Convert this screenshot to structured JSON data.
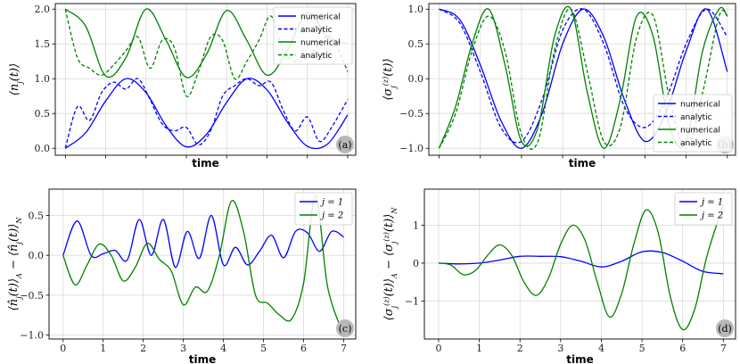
{
  "chart_data": [
    {
      "panel": "(a)",
      "type": "line",
      "xlabel": "time",
      "ylabel": "⟨n_j(t)⟩",
      "xlim": [
        -0.25,
        7.2
      ],
      "ylim": [
        -0.1,
        2.08
      ],
      "xticks": [
        0,
        1,
        2,
        3,
        4,
        5,
        6,
        7
      ],
      "xtick_labels_shown": false,
      "yticks": [
        0.0,
        0.5,
        1.0,
        1.5,
        2.0
      ],
      "ytick_labels": [
        "0.0",
        "0.5",
        "1.0",
        "1.5",
        "2.0"
      ],
      "grid": true,
      "legend_position": "top-right",
      "series": [
        {
          "name": "numerical",
          "color": "#0000ff",
          "style": "solid",
          "x": [
            0,
            0.5,
            1,
            1.5,
            2,
            2.5,
            3,
            3.5,
            4,
            4.5,
            5,
            5.5,
            6,
            6.5,
            7
          ],
          "values": [
            0.0,
            0.22,
            0.68,
            1.0,
            0.8,
            0.32,
            0.02,
            0.2,
            0.66,
            1.0,
            0.84,
            0.38,
            0.03,
            0.06,
            0.48
          ]
        },
        {
          "name": "analytic",
          "color": "#0000ff",
          "style": "dashed",
          "x": [
            0,
            0.3,
            0.6,
            0.9,
            1.2,
            1.5,
            1.8,
            2.1,
            2.4,
            2.7,
            3.0,
            3.3,
            3.6,
            3.9,
            4.2,
            4.5,
            4.8,
            5.1,
            5.4,
            5.7,
            6.0,
            6.3,
            6.6,
            7.0
          ],
          "values": [
            0.0,
            0.6,
            0.4,
            0.8,
            0.95,
            0.85,
            1.0,
            0.7,
            0.35,
            0.25,
            0.3,
            0.05,
            0.25,
            0.75,
            0.9,
            1.0,
            0.9,
            0.95,
            0.55,
            0.25,
            0.45,
            0.1,
            0.3,
            0.7
          ]
        },
        {
          "name": "numerical",
          "color": "#008000",
          "style": "solid",
          "x": [
            0,
            0.5,
            1,
            1.5,
            2,
            2.5,
            3,
            3.5,
            4,
            4.5,
            5,
            5.5,
            6,
            6.5,
            7
          ],
          "values": [
            2.0,
            1.76,
            1.04,
            1.3,
            2.0,
            1.55,
            1.02,
            1.35,
            1.98,
            1.55,
            1.05,
            1.4,
            1.95,
            1.6,
            1.5
          ]
        },
        {
          "name": "analytic",
          "color": "#008000",
          "style": "dashed",
          "x": [
            0,
            0.3,
            0.6,
            0.9,
            1.2,
            1.5,
            1.8,
            2.1,
            2.4,
            2.7,
            3.0,
            3.3,
            3.6,
            3.9,
            4.2,
            4.5,
            4.8,
            5.1,
            5.4,
            5.7,
            6.0,
            6.3,
            6.6,
            7.0
          ],
          "values": [
            2.0,
            1.3,
            1.15,
            1.05,
            1.2,
            1.4,
            1.6,
            1.15,
            1.55,
            1.45,
            0.75,
            1.1,
            1.6,
            1.55,
            1.0,
            1.25,
            1.55,
            1.9,
            1.4,
            1.25,
            1.3,
            1.5,
            1.6,
            1.1
          ]
        }
      ]
    },
    {
      "panel": "(b)",
      "type": "line",
      "xlabel": "time",
      "ylabel": "⟨σ_j^(z)(t)⟩",
      "xlim": [
        -0.25,
        7.2
      ],
      "ylim": [
        -1.1,
        1.08
      ],
      "xticks": [
        0,
        1,
        2,
        3,
        4,
        5,
        6,
        7
      ],
      "xtick_labels_shown": false,
      "yticks": [
        -1.0,
        -0.5,
        0.0,
        0.5,
        1.0
      ],
      "ytick_labels": [
        "−1.0",
        "−0.5",
        "0.0",
        "0.5",
        "1.0"
      ],
      "grid": true,
      "legend_position": "bottom-right",
      "series": [
        {
          "name": "numerical",
          "color": "#0000ff",
          "style": "solid",
          "x": [
            0,
            0.5,
            1,
            1.5,
            2,
            2.5,
            3,
            3.5,
            4,
            4.5,
            5,
            5.5,
            6,
            6.5,
            7
          ],
          "values": [
            1.0,
            0.85,
            0.2,
            -0.6,
            -1.0,
            -0.5,
            0.5,
            1.0,
            0.6,
            -0.3,
            -0.9,
            -0.5,
            0.4,
            1.0,
            0.1
          ]
        },
        {
          "name": "analytic",
          "color": "#0000ff",
          "style": "dashed",
          "x": [
            0,
            0.5,
            1,
            1.5,
            2,
            2.5,
            3,
            3.5,
            4,
            4.5,
            5,
            5.5,
            6,
            6.5,
            7
          ],
          "values": [
            1.0,
            0.8,
            0.1,
            -0.7,
            -0.9,
            -0.3,
            0.7,
            1.0,
            0.5,
            -0.4,
            -0.7,
            -0.3,
            0.5,
            1.0,
            0.6
          ]
        },
        {
          "name": "numerical",
          "color": "#008000",
          "style": "solid",
          "x": [
            0,
            0.4,
            0.8,
            1.2,
            1.6,
            2.0,
            2.4,
            2.8,
            3.2,
            3.6,
            4.0,
            4.4,
            4.8,
            5.2,
            5.6,
            6.0,
            6.4,
            6.8,
            7.0
          ],
          "values": [
            -1.0,
            -0.4,
            0.5,
            1.0,
            0.2,
            -0.9,
            -0.7,
            0.6,
            1.0,
            -0.2,
            -1.0,
            -0.3,
            0.9,
            0.6,
            -0.7,
            -0.9,
            0.4,
            1.0,
            0.9
          ]
        },
        {
          "name": "analytic",
          "color": "#008000",
          "style": "dashed",
          "x": [
            0,
            0.4,
            0.8,
            1.2,
            1.6,
            2.0,
            2.4,
            2.8,
            3.2,
            3.6,
            4.0,
            4.4,
            4.8,
            5.2,
            5.6,
            6.0,
            6.4,
            6.8,
            7.0
          ],
          "values": [
            -1.0,
            -0.5,
            0.4,
            0.9,
            0.4,
            -0.8,
            -0.9,
            0.4,
            1.0,
            0.1,
            -0.9,
            -0.7,
            0.6,
            0.9,
            -0.3,
            -1.0,
            -0.2,
            0.9,
            0.9
          ]
        }
      ]
    },
    {
      "panel": "(c)",
      "type": "line",
      "xlabel": "time",
      "ylabel": "⟨n̂_j(t)⟩_A − ⟨n̂_j(t)⟩_N",
      "xlim": [
        -0.35,
        7.3
      ],
      "ylim": [
        -1.05,
        0.83
      ],
      "xticks": [
        0,
        1,
        2,
        3,
        4,
        5,
        6,
        7
      ],
      "xtick_labels": [
        "0",
        "1",
        "2",
        "3",
        "4",
        "5",
        "6",
        "7"
      ],
      "yticks": [
        -1.0,
        -0.5,
        0.0,
        0.5
      ],
      "ytick_labels": [
        "−1.0",
        "−0.5",
        "0.0",
        "0.5"
      ],
      "grid": true,
      "legend_position": "top-right",
      "series": [
        {
          "name": "j = 1",
          "color": "#0000ff",
          "style": "solid",
          "x": [
            0,
            0.35,
            0.7,
            1.0,
            1.3,
            1.6,
            1.9,
            2.2,
            2.5,
            2.8,
            3.1,
            3.4,
            3.7,
            4.0,
            4.3,
            4.6,
            4.9,
            5.2,
            5.5,
            5.8,
            6.1,
            6.4,
            6.7,
            7.0
          ],
          "values": [
            0.0,
            0.43,
            0.0,
            0.02,
            0.06,
            -0.06,
            0.45,
            0.0,
            0.45,
            -0.15,
            0.3,
            -0.04,
            0.5,
            -0.12,
            0.1,
            -0.12,
            0.05,
            0.25,
            -0.03,
            0.3,
            0.28,
            0.05,
            0.3,
            0.23
          ]
        },
        {
          "name": "j = 2",
          "color": "#008000",
          "style": "solid",
          "x": [
            0,
            0.3,
            0.6,
            0.9,
            1.2,
            1.5,
            1.8,
            2.1,
            2.4,
            2.7,
            3.0,
            3.3,
            3.6,
            3.9,
            4.2,
            4.5,
            4.8,
            5.1,
            5.4,
            5.7,
            6.0,
            6.3,
            6.6,
            7.0
          ],
          "values": [
            0.0,
            -0.37,
            -0.12,
            0.14,
            0.0,
            -0.32,
            -0.15,
            0.15,
            -0.05,
            -0.2,
            -0.62,
            -0.4,
            -0.45,
            0.0,
            0.68,
            0.3,
            -0.5,
            -0.6,
            -0.75,
            -0.8,
            -0.35,
            0.75,
            -0.4,
            -1.0
          ]
        }
      ]
    },
    {
      "panel": "(d)",
      "type": "line",
      "xlabel": "time",
      "ylabel": "⟨σ_j^(z)(t)⟩_A − ⟨σ_j^(z)(t)⟩_N",
      "xlim": [
        -0.35,
        7.3
      ],
      "ylim": [
        -2.0,
        1.95
      ],
      "xticks": [
        0,
        1,
        2,
        3,
        4,
        5,
        6,
        7
      ],
      "xtick_labels": [
        "0",
        "1",
        "2",
        "3",
        "4",
        "5",
        "6",
        "7"
      ],
      "yticks": [
        -1,
        0,
        1
      ],
      "ytick_labels": [
        "−1",
        "0",
        "1"
      ],
      "grid": true,
      "legend_position": "top-right",
      "series": [
        {
          "name": "j = 1",
          "color": "#0000ff",
          "style": "solid",
          "x": [
            0,
            0.5,
            1.0,
            1.5,
            2.0,
            2.5,
            3.0,
            3.5,
            4.0,
            4.5,
            5.0,
            5.5,
            6.0,
            6.5,
            7.0
          ],
          "values": [
            0.0,
            -0.02,
            0.0,
            0.08,
            0.18,
            0.18,
            0.17,
            0.05,
            -0.1,
            0.05,
            0.3,
            0.28,
            0.05,
            -0.22,
            -0.28
          ]
        },
        {
          "name": "j = 2",
          "color": "#008000",
          "style": "solid",
          "x": [
            0,
            0.3,
            0.6,
            0.9,
            1.2,
            1.5,
            1.8,
            2.1,
            2.4,
            2.7,
            3.0,
            3.3,
            3.6,
            3.9,
            4.2,
            4.5,
            4.8,
            5.1,
            5.4,
            5.7,
            6.0,
            6.3,
            6.6,
            7.0
          ],
          "values": [
            0.0,
            -0.05,
            -0.3,
            -0.2,
            0.2,
            0.48,
            0.2,
            -0.5,
            -0.85,
            -0.4,
            0.5,
            1.0,
            0.6,
            -0.5,
            -1.42,
            -0.8,
            0.5,
            1.4,
            0.8,
            -0.9,
            -1.75,
            -1.2,
            0.2,
            1.55
          ]
        }
      ]
    }
  ]
}
